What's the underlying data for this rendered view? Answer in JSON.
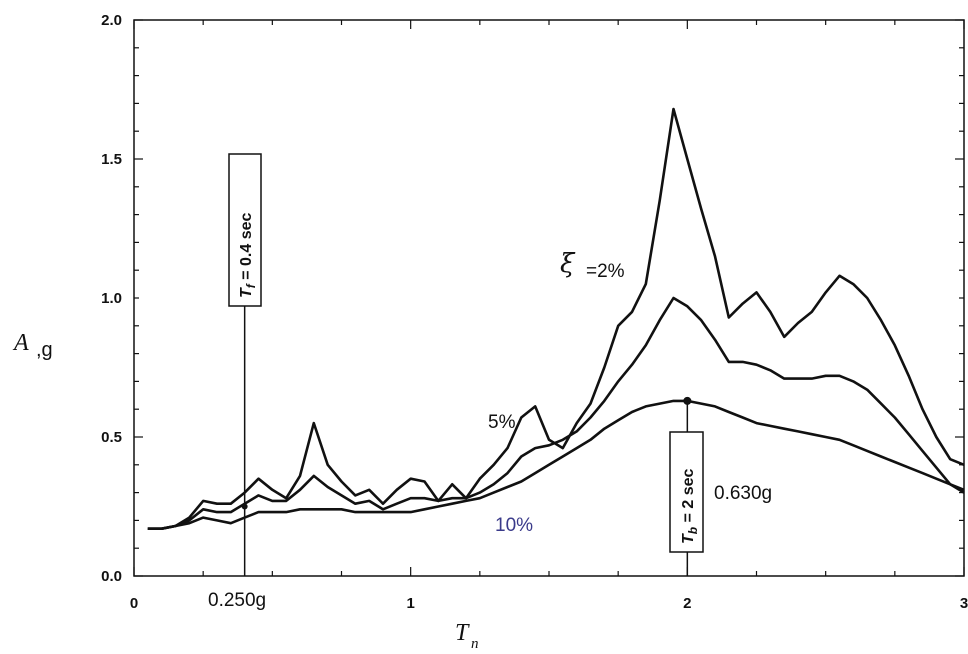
{
  "chart_data": {
    "type": "line",
    "xlabel": "T",
    "xlabel_sub": "n",
    "ylabel": "A",
    "ylabel_unit": ",g",
    "xlim": [
      0,
      3
    ],
    "ylim": [
      0,
      2.0
    ],
    "xticks": [
      0,
      1,
      2,
      3
    ],
    "xtick_labels": [
      "0",
      "1",
      "2",
      "3"
    ],
    "yticks": [
      0.0,
      0.5,
      1.0,
      1.5,
      2.0
    ],
    "ytick_labels": [
      "0.0",
      "0.5",
      "1.0",
      "1.5",
      "2.0"
    ],
    "grid": false,
    "series": [
      {
        "name": "2%",
        "x": [
          0.05,
          0.1,
          0.15,
          0.2,
          0.25,
          0.3,
          0.35,
          0.4,
          0.45,
          0.5,
          0.55,
          0.6,
          0.65,
          0.7,
          0.75,
          0.8,
          0.85,
          0.9,
          0.95,
          1.0,
          1.05,
          1.1,
          1.15,
          1.2,
          1.25,
          1.3,
          1.35,
          1.4,
          1.45,
          1.5,
          1.55,
          1.6,
          1.65,
          1.7,
          1.75,
          1.8,
          1.85,
          1.9,
          1.95,
          2.0,
          2.05,
          2.1,
          2.15,
          2.2,
          2.25,
          2.3,
          2.35,
          2.4,
          2.45,
          2.5,
          2.55,
          2.6,
          2.65,
          2.7,
          2.75,
          2.8,
          2.85,
          2.9,
          2.95,
          3.0
        ],
        "y": [
          0.17,
          0.17,
          0.18,
          0.21,
          0.27,
          0.26,
          0.26,
          0.3,
          0.35,
          0.31,
          0.28,
          0.36,
          0.55,
          0.4,
          0.34,
          0.29,
          0.31,
          0.26,
          0.31,
          0.35,
          0.34,
          0.27,
          0.33,
          0.28,
          0.35,
          0.4,
          0.46,
          0.57,
          0.61,
          0.49,
          0.46,
          0.55,
          0.62,
          0.75,
          0.9,
          0.95,
          1.05,
          1.35,
          1.68,
          1.5,
          1.32,
          1.15,
          0.93,
          0.98,
          1.02,
          0.95,
          0.86,
          0.91,
          0.95,
          1.02,
          1.08,
          1.05,
          1.0,
          0.92,
          0.83,
          0.72,
          0.6,
          0.5,
          0.42,
          0.4
        ]
      },
      {
        "name": "5%",
        "x": [
          0.05,
          0.1,
          0.15,
          0.2,
          0.25,
          0.3,
          0.35,
          0.4,
          0.45,
          0.5,
          0.55,
          0.6,
          0.65,
          0.7,
          0.75,
          0.8,
          0.85,
          0.9,
          0.95,
          1.0,
          1.05,
          1.1,
          1.15,
          1.2,
          1.25,
          1.3,
          1.35,
          1.4,
          1.45,
          1.5,
          1.55,
          1.6,
          1.65,
          1.7,
          1.75,
          1.8,
          1.85,
          1.9,
          1.95,
          2.0,
          2.05,
          2.1,
          2.15,
          2.2,
          2.25,
          2.3,
          2.35,
          2.4,
          2.45,
          2.5,
          2.55,
          2.6,
          2.65,
          2.7,
          2.75,
          2.8,
          2.85,
          2.9,
          2.95,
          3.0
        ],
        "y": [
          0.17,
          0.17,
          0.18,
          0.2,
          0.24,
          0.23,
          0.23,
          0.26,
          0.29,
          0.27,
          0.27,
          0.31,
          0.36,
          0.32,
          0.29,
          0.26,
          0.27,
          0.24,
          0.26,
          0.28,
          0.28,
          0.27,
          0.28,
          0.28,
          0.3,
          0.33,
          0.37,
          0.43,
          0.46,
          0.47,
          0.49,
          0.52,
          0.57,
          0.63,
          0.7,
          0.76,
          0.83,
          0.92,
          1.0,
          0.97,
          0.92,
          0.85,
          0.77,
          0.77,
          0.76,
          0.74,
          0.71,
          0.71,
          0.71,
          0.72,
          0.72,
          0.7,
          0.67,
          0.62,
          0.57,
          0.51,
          0.45,
          0.39,
          0.33,
          0.31
        ]
      },
      {
        "name": "10%",
        "x": [
          0.05,
          0.1,
          0.15,
          0.2,
          0.25,
          0.3,
          0.35,
          0.4,
          0.45,
          0.5,
          0.55,
          0.6,
          0.65,
          0.7,
          0.75,
          0.8,
          0.85,
          0.9,
          0.95,
          1.0,
          1.05,
          1.1,
          1.15,
          1.2,
          1.25,
          1.3,
          1.35,
          1.4,
          1.45,
          1.5,
          1.55,
          1.6,
          1.65,
          1.7,
          1.75,
          1.8,
          1.85,
          1.9,
          1.95,
          2.0,
          2.05,
          2.1,
          2.15,
          2.2,
          2.25,
          2.3,
          2.35,
          2.4,
          2.45,
          2.5,
          2.55,
          2.6,
          2.65,
          2.7,
          2.75,
          2.8,
          2.85,
          2.9,
          2.95,
          3.0
        ],
        "y": [
          0.17,
          0.17,
          0.18,
          0.19,
          0.21,
          0.2,
          0.19,
          0.21,
          0.23,
          0.23,
          0.23,
          0.24,
          0.24,
          0.24,
          0.24,
          0.23,
          0.23,
          0.23,
          0.23,
          0.23,
          0.24,
          0.25,
          0.26,
          0.27,
          0.28,
          0.3,
          0.32,
          0.34,
          0.37,
          0.4,
          0.43,
          0.46,
          0.49,
          0.53,
          0.56,
          0.59,
          0.61,
          0.62,
          0.63,
          0.63,
          0.62,
          0.61,
          0.59,
          0.57,
          0.55,
          0.54,
          0.53,
          0.52,
          0.51,
          0.5,
          0.49,
          0.47,
          0.45,
          0.43,
          0.41,
          0.39,
          0.37,
          0.35,
          0.33,
          0.3
        ]
      }
    ],
    "series_labels": {
      "xi_symbol": "ξ",
      "s2": "=2%",
      "s5": "5%",
      "s10": "10%"
    },
    "annotations": {
      "tf_box": {
        "text": "T",
        "sub": "f",
        "rest": " = 0.4 sec",
        "x": 0.4
      },
      "tb_box": {
        "text": "T",
        "sub": "b",
        "rest": " = 2 sec",
        "x": 2.0
      },
      "value_at_tf": "0.250g",
      "value_at_tb": "0.630g",
      "tb_point": {
        "x": 2.0,
        "y": 0.63
      },
      "tf_point": {
        "x": 0.4,
        "y": 0.25
      }
    }
  }
}
